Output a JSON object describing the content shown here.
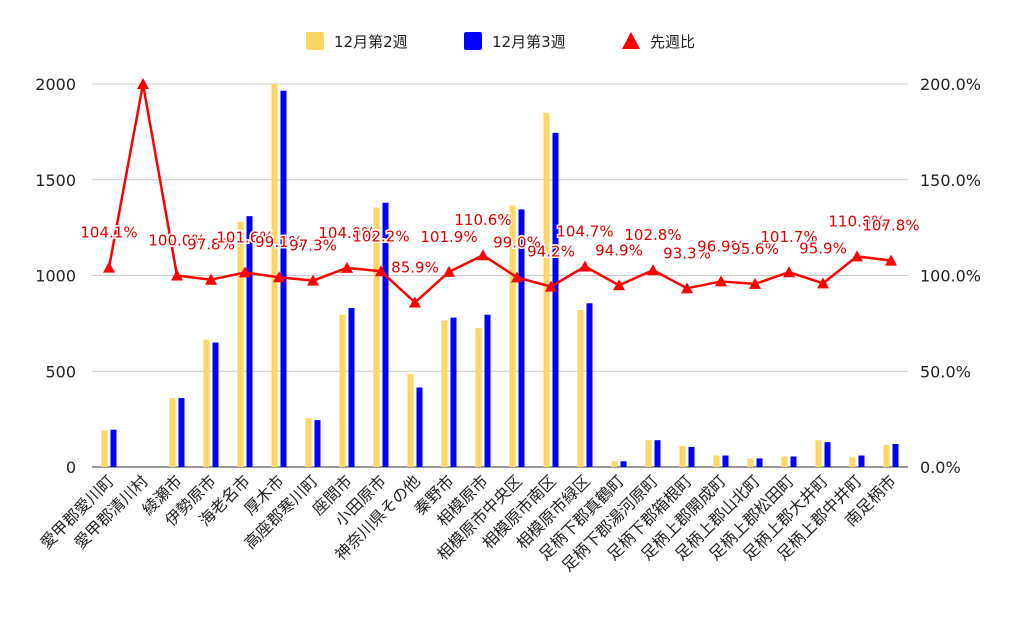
{
  "chart_data": {
    "type": "bar",
    "categories": [
      "愛甲郡愛川町",
      "愛甲郡清川村",
      "綾瀬市",
      "伊勢原市",
      "海老名市",
      "厚木市",
      "高座郡寒川町",
      "座間市",
      "小田原市",
      "神奈川県その他",
      "秦野市",
      "相模原市",
      "相模原市中央区",
      "相模原市南区",
      "相模原市緑区",
      "足柄下郡真鶴町",
      "足柄下郡湯河原町",
      "足柄下郡箱根町",
      "足柄上郡開成町",
      "足柄上郡山北町",
      "足柄上郡松田町",
      "足柄上郡大井町",
      "足柄上郡中井町",
      "南足柄市"
    ],
    "series": [
      {
        "name": "12月第2週",
        "color": "#FDD663",
        "values": [
          190,
          0,
          360,
          665,
          1280,
          2000,
          255,
          795,
          1355,
          485,
          765,
          725,
          1365,
          1850,
          820,
          30,
          140,
          110,
          60,
          45,
          55,
          140,
          50,
          115
        ]
      },
      {
        "name": "12月第3週",
        "color": "#0000FF",
        "values": [
          195,
          0,
          360,
          650,
          1310,
          1965,
          245,
          830,
          1380,
          415,
          780,
          795,
          1345,
          1745,
          855,
          30,
          140,
          105,
          60,
          45,
          55,
          130,
          60,
          120
        ]
      },
      {
        "name": "先週比",
        "color": "#FF0000",
        "axis": "right",
        "type": "line",
        "marker": "triangle",
        "values": [
          104.1,
          200,
          100.0,
          97.8,
          101.6,
          99.1,
          97.3,
          104.0,
          102.2,
          85.9,
          101.9,
          110.6,
          99.0,
          94.2,
          104.7,
          94.9,
          102.8,
          93.3,
          96.9,
          95.6,
          101.7,
          95.9,
          110.0,
          107.8
        ],
        "labels": [
          "104.1%",
          "",
          "100.0%",
          "97.8%",
          "101.6%",
          "99.1%",
          "97.3%",
          "104.0%",
          "102.2%",
          "85.9%",
          "101.9%",
          "110.6%",
          "99.0%",
          "94.2%",
          "104.7%",
          "94.9%",
          "102.8%",
          "93.3%",
          "96.9%",
          "95.6%",
          "101.7%",
          "95.9%",
          "110.0%",
          "107.8%"
        ]
      }
    ],
    "y_left": {
      "min": 0,
      "max": 2000,
      "ticks": [
        "0",
        "500",
        "1000",
        "1500",
        "2000"
      ]
    },
    "y_right": {
      "min": 0,
      "max": 200,
      "ticks": [
        "0.0%",
        "50.0%",
        "100.0%",
        "150.0%",
        "200.0%"
      ]
    },
    "legend_position": "top",
    "grid": true
  }
}
